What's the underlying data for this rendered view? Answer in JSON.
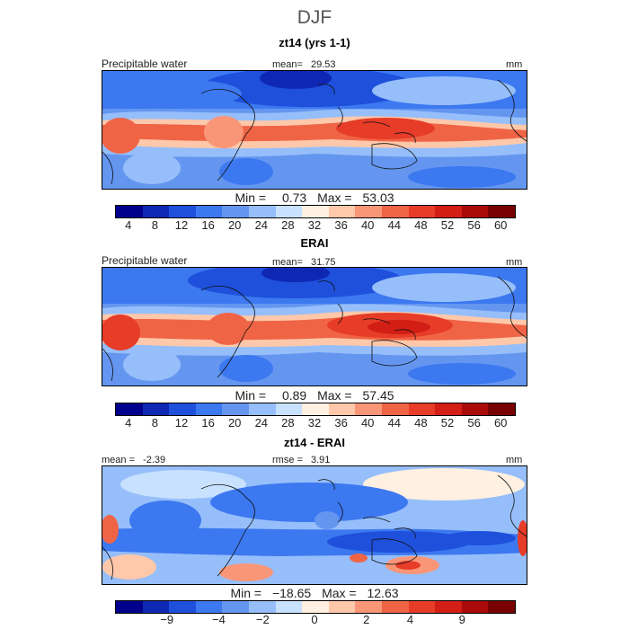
{
  "season": "DJF",
  "colorbar_colors": [
    "#00008c",
    "#0f28b4",
    "#1e50dc",
    "#3c78f0",
    "#6496f0",
    "#96befa",
    "#c8e1ff",
    "#fff0e1",
    "#ffc8aa",
    "#fa9678",
    "#f06446",
    "#e63c28",
    "#d21e14",
    "#aa0a0a",
    "#780000"
  ],
  "diff_colorbar_colors": [
    "#00008c",
    "#0f28b4",
    "#1e50dc",
    "#3c78f0",
    "#6496f0",
    "#96befa",
    "#c8e1ff",
    "#fff0e1",
    "#ffc8aa",
    "#fa9678",
    "#f06446",
    "#e63c28",
    "#d21e14",
    "#aa0a0a",
    "#780000"
  ],
  "panels": [
    {
      "title": "zt14 (yrs 1-1)",
      "variable": "Precipitable water",
      "mean_label": "mean=",
      "mean_value": "29.53",
      "units": "mm",
      "min_label": "Min =",
      "min_value": "0.73",
      "max_label": "Max =",
      "max_value": "53.03",
      "ticks": [
        "4",
        "8",
        "12",
        "16",
        "20",
        "24",
        "28",
        "32",
        "36",
        "40",
        "44",
        "48",
        "52",
        "56",
        "60"
      ]
    },
    {
      "title": "ERAI",
      "variable": "Precipitable water",
      "mean_label": "mean=",
      "mean_value": "31.75",
      "units": "mm",
      "min_label": "Min =",
      "min_value": "0.89",
      "max_label": "Max =",
      "max_value": "57.45",
      "ticks": [
        "4",
        "8",
        "12",
        "16",
        "20",
        "24",
        "28",
        "32",
        "36",
        "40",
        "44",
        "48",
        "52",
        "56",
        "60"
      ]
    },
    {
      "title": "zt14 - ERAI",
      "mean_label": "mean =",
      "mean_value": "-2.39",
      "rmse_label": "rmse =",
      "rmse_value": "3.91",
      "units": "mm",
      "min_label": "Min =",
      "min_value": "−18.65",
      "max_label": "Max =",
      "max_value": "12.63",
      "ticks": [
        "−9",
        "−4",
        "−2",
        "0",
        "2",
        "4",
        "9"
      ]
    }
  ]
}
